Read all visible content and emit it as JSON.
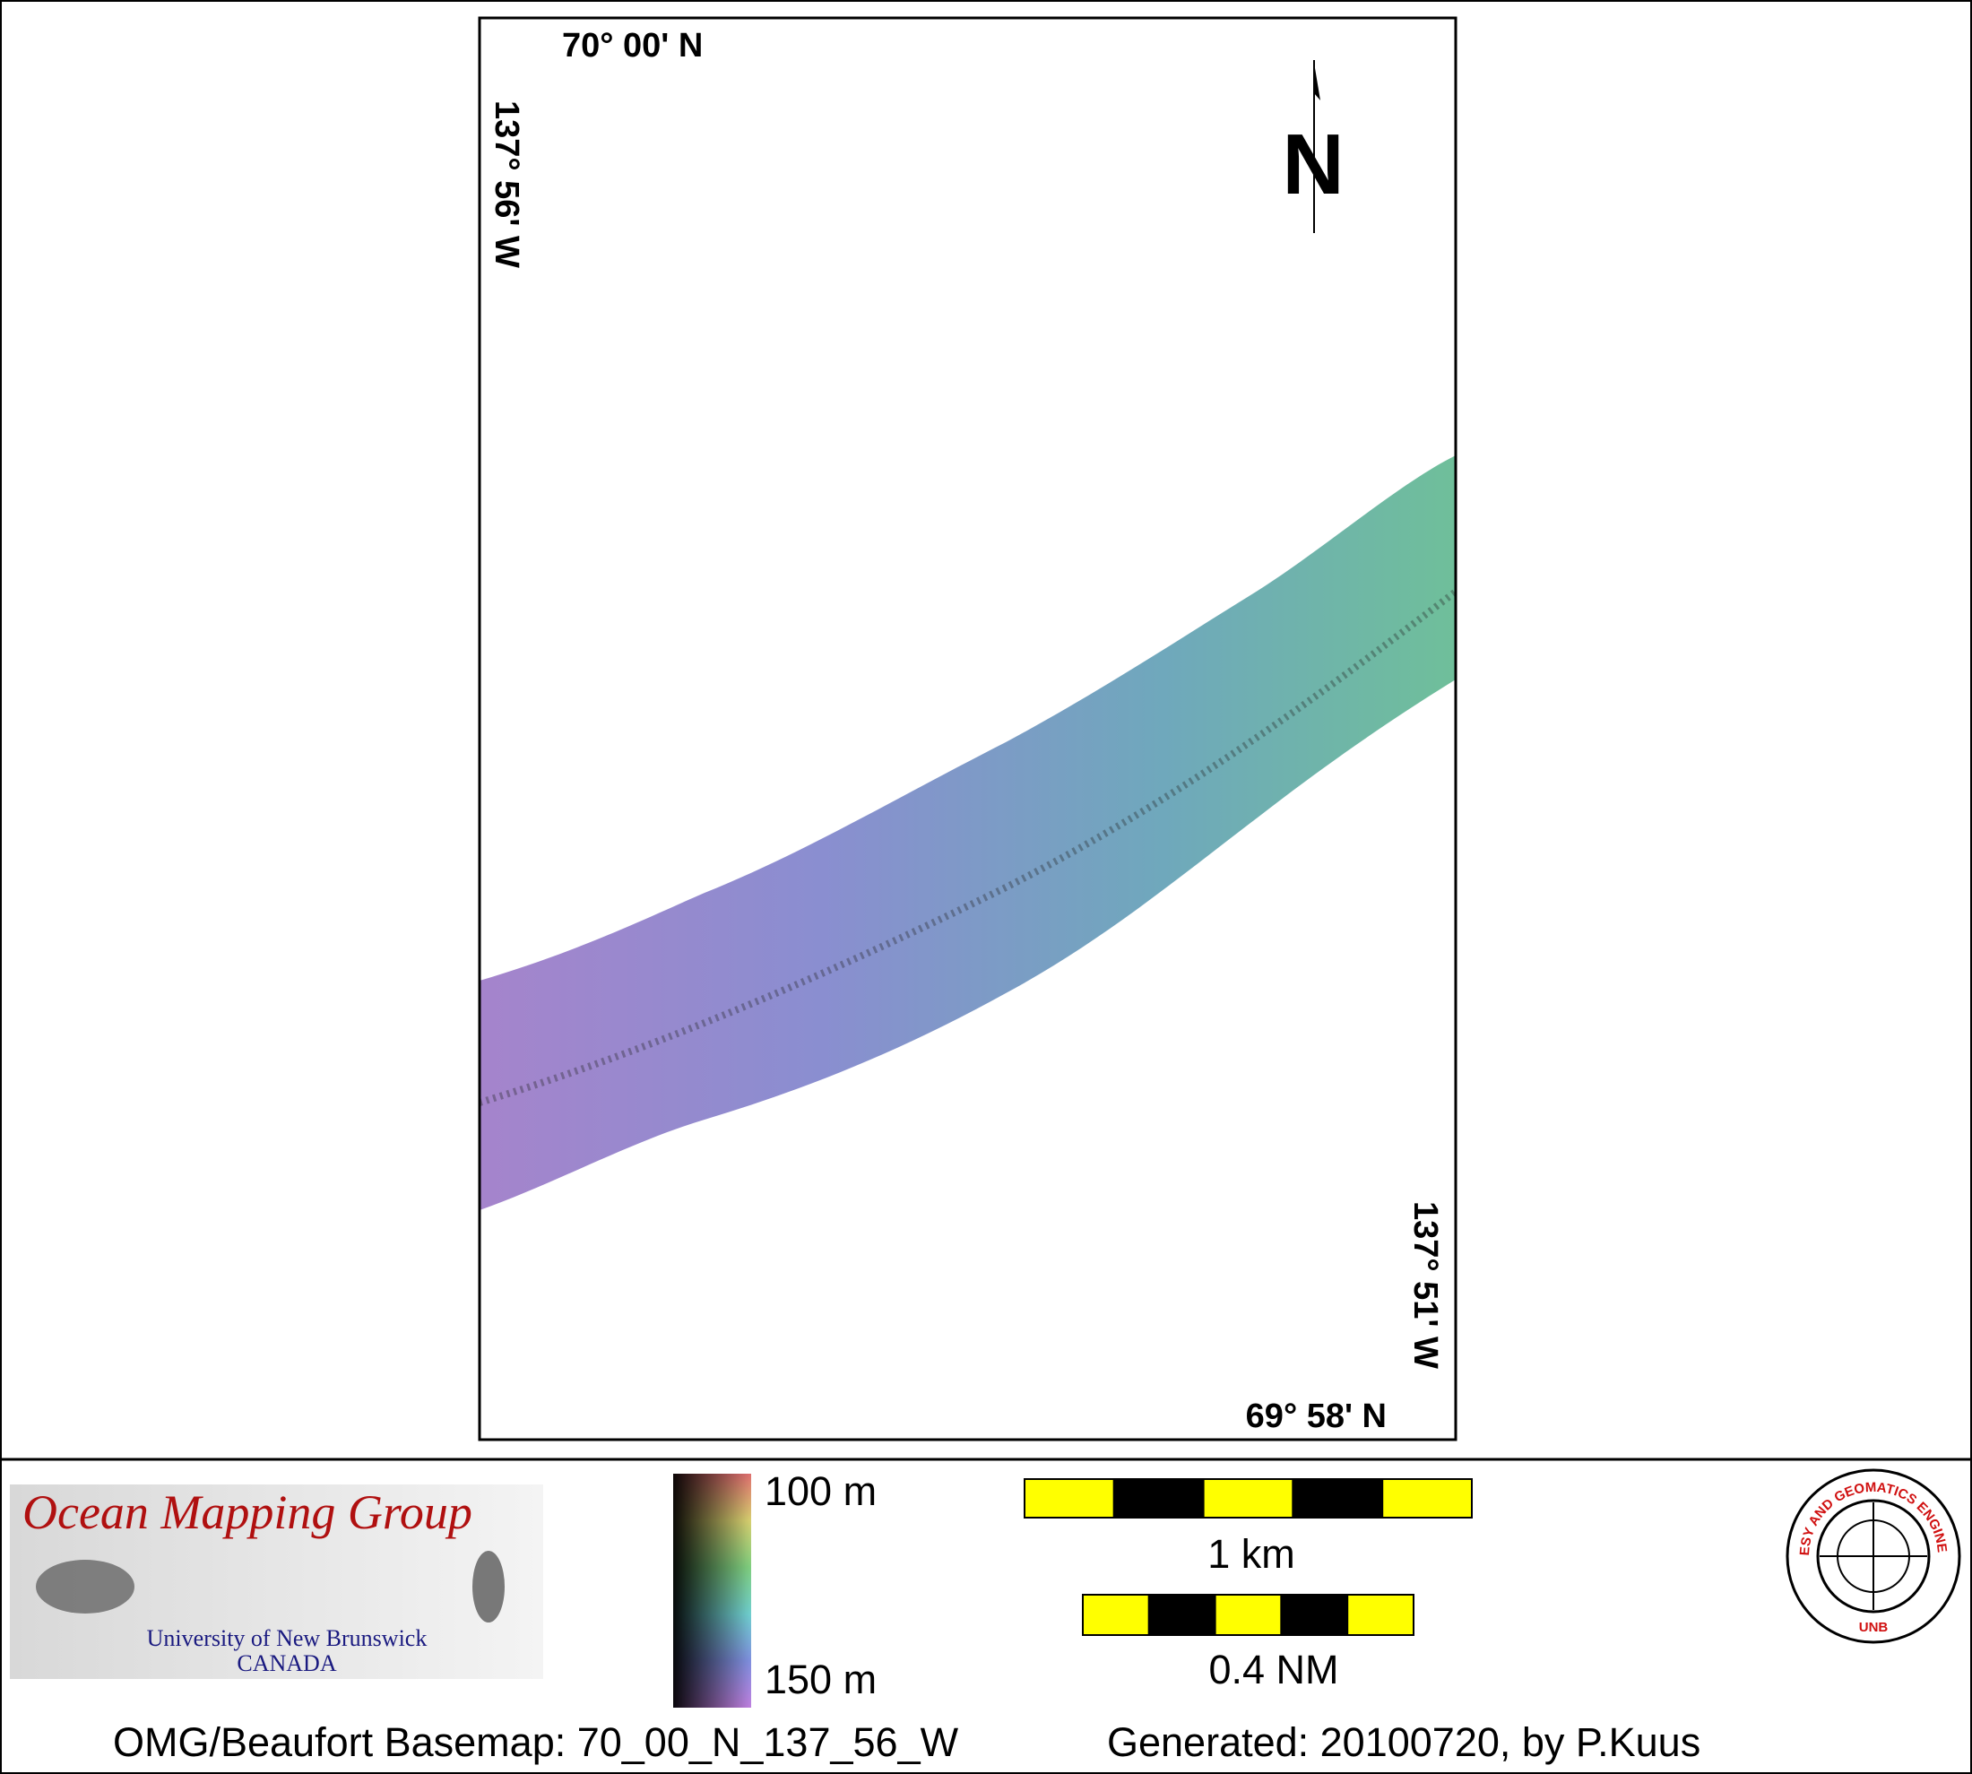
{
  "map": {
    "top_left_latitude": "70° 00' N",
    "top_left_longitude": "137° 56' W",
    "bottom_right_latitude": "69° 58' N",
    "bottom_right_longitude": "137° 51' W",
    "north_label": "N"
  },
  "legend": {
    "top_label": "100 m",
    "bottom_label": "150 m"
  },
  "scale_bars": [
    {
      "label": "1 km"
    },
    {
      "label": "0.4 NM"
    }
  ],
  "logo": {
    "title": "Ocean Mapping Group",
    "line1": "University of New Brunswick",
    "line2": "CANADA"
  },
  "seal": {
    "ring_text": "GEODESY AND GEOMATICS ENGINEERING",
    "bottom_text": "UNB"
  },
  "footer": {
    "basemap": "OMG/Beaufort Basemap: 70_00_N_137_56_W",
    "generated": "Generated: 20100720, by P.Kuus"
  }
}
